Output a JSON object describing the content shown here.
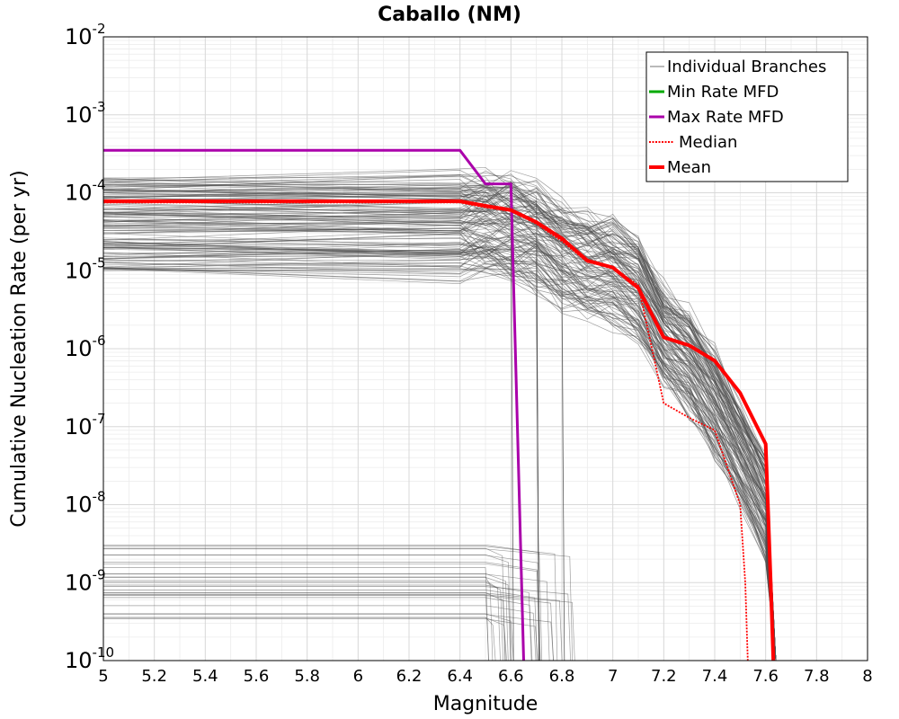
{
  "chart_data": {
    "type": "line",
    "title": "Caballo (NM)",
    "xlabel": "Magnitude",
    "ylabel": "Cumulative Nucleation Rate (per yr)",
    "xlim": [
      5,
      8
    ],
    "ylim": [
      1e-10,
      0.01
    ],
    "y_scale": "log",
    "grid": true,
    "x_ticks": [
      "5",
      "5.2",
      "5.4",
      "5.6",
      "5.8",
      "6",
      "6.2",
      "6.4",
      "6.6",
      "6.8",
      "7",
      "7.2",
      "7.4",
      "7.6",
      "7.8",
      "8"
    ],
    "y_ticks": [
      {
        "base": "10",
        "exp": "-2"
      },
      {
        "base": "10",
        "exp": "-3"
      },
      {
        "base": "10",
        "exp": "-4"
      },
      {
        "base": "10",
        "exp": "-5"
      },
      {
        "base": "10",
        "exp": "-6"
      },
      {
        "base": "10",
        "exp": "-7"
      },
      {
        "base": "10",
        "exp": "-8"
      },
      {
        "base": "10",
        "exp": "-9"
      },
      {
        "base": "10",
        "exp": "-10"
      }
    ],
    "legend_position": "top-right",
    "series": [
      {
        "name": "Individual Branches",
        "color": "#505050",
        "style": "thin",
        "x": [
          5.0,
          6.4,
          6.5,
          6.6,
          6.7,
          6.8,
          6.9,
          7.0,
          7.1,
          7.2,
          7.3,
          7.4,
          7.5,
          7.6,
          7.64
        ],
        "y": [
          4e-05,
          4e-05,
          3.8e-05,
          3.5e-05,
          2.8e-05,
          1.6e-05,
          1.2e-05,
          1e-05,
          6e-06,
          1.5e-06,
          7e-07,
          2e-07,
          5e-08,
          1e-08,
          1e-10
        ]
      },
      {
        "name": "Min Rate MFD",
        "color": "#00aa00",
        "style": "solid",
        "x": [],
        "y": []
      },
      {
        "name": "Max Rate MFD",
        "color": "#aa00aa",
        "style": "solid",
        "x": [
          5.0,
          6.4,
          6.5,
          6.6,
          6.65
        ],
        "y": [
          0.00035,
          0.00035,
          0.00013,
          0.00013,
          1e-10
        ]
      },
      {
        "name": "Median",
        "color": "#ff0000",
        "style": "dotted",
        "x": [
          5.0,
          6.4,
          6.5,
          6.6,
          6.7,
          6.8,
          6.9,
          7.0,
          7.1,
          7.2,
          7.3,
          7.4,
          7.5,
          7.52,
          7.53
        ],
        "y": [
          7.5e-05,
          7.5e-05,
          6.5e-05,
          5.8e-05,
          4e-05,
          2.4e-05,
          1.3e-05,
          1.1e-05,
          6.5e-06,
          2e-07,
          1.3e-07,
          9e-08,
          1e-08,
          1e-09,
          1e-10
        ]
      },
      {
        "name": "Mean",
        "color": "#ff0000",
        "style": "thick",
        "x": [
          5.0,
          6.4,
          6.5,
          6.6,
          6.7,
          6.8,
          6.9,
          7.0,
          7.1,
          7.2,
          7.3,
          7.4,
          7.5,
          7.6,
          7.62,
          7.63
        ],
        "y": [
          7.8e-05,
          7.8e-05,
          6.8e-05,
          6e-05,
          4.2e-05,
          2.6e-05,
          1.35e-05,
          1.1e-05,
          6e-06,
          1.4e-06,
          1.1e-06,
          7e-07,
          2.7e-07,
          6e-08,
          1e-09,
          1e-10
        ]
      }
    ]
  }
}
